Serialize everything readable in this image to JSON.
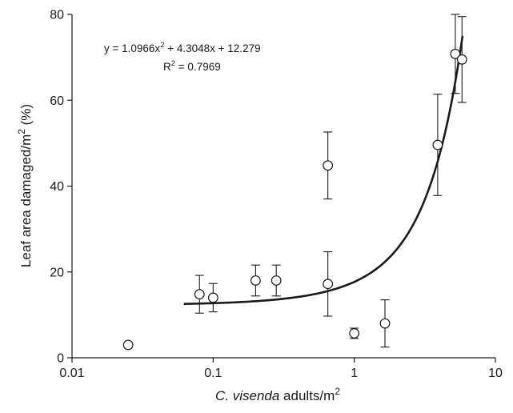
{
  "chart_data": {
    "type": "scatter",
    "x_scale": "log",
    "xlabel": {
      "italic": "C. visenda",
      "rest": " adults/m",
      "sup": "2"
    },
    "ylabel": {
      "main": "Leaf area damaged/m",
      "sup": "2",
      "unit": " (%)"
    },
    "xlim": [
      0.01,
      10
    ],
    "ylim": [
      0,
      80
    ],
    "x_ticks": [
      {
        "value": 0.01,
        "label": "0.01"
      },
      {
        "value": 0.1,
        "label": "0.1"
      },
      {
        "value": 1,
        "label": "1"
      },
      {
        "value": 10,
        "label": "10"
      }
    ],
    "y_ticks": [
      {
        "value": 0,
        "label": "0"
      },
      {
        "value": 20,
        "label": "20"
      },
      {
        "value": 40,
        "label": "40"
      },
      {
        "value": 60,
        "label": "60"
      },
      {
        "value": 80,
        "label": "80"
      }
    ],
    "grid": false,
    "points": [
      {
        "x": 0.025,
        "y": 3,
        "err": 0
      },
      {
        "x": 0.08,
        "y": 14.8,
        "err": 4.4
      },
      {
        "x": 0.1,
        "y": 14,
        "err": 3.3
      },
      {
        "x": 0.2,
        "y": 18,
        "err": 3.6
      },
      {
        "x": 0.28,
        "y": 18,
        "err": 3.6
      },
      {
        "x": 0.65,
        "y": 44.8,
        "err": 7.8
      },
      {
        "x": 0.65,
        "y": 17.2,
        "err": 7.5
      },
      {
        "x": 1.0,
        "y": 5.7,
        "err": 1.2
      },
      {
        "x": 1.65,
        "y": 8,
        "err": 5.5
      },
      {
        "x": 3.9,
        "y": 49.6,
        "err": 11.8
      },
      {
        "x": 5.2,
        "y": 70.8,
        "err": 9.2
      },
      {
        "x": 5.8,
        "y": 69.5,
        "err": 10
      }
    ],
    "trendline": {
      "a": 1.0966,
      "b": 4.3048,
      "c": 12.279,
      "x_from": 0.062,
      "x_to": 5.85
    },
    "equation": {
      "eq_start": "y = 1.0966x",
      "eq_sup": "2",
      "eq_end": " + 4.3048x + 12.279",
      "r2_start": "R",
      "r2_sup": "2",
      "r2_end": " = 0.7969"
    }
  }
}
